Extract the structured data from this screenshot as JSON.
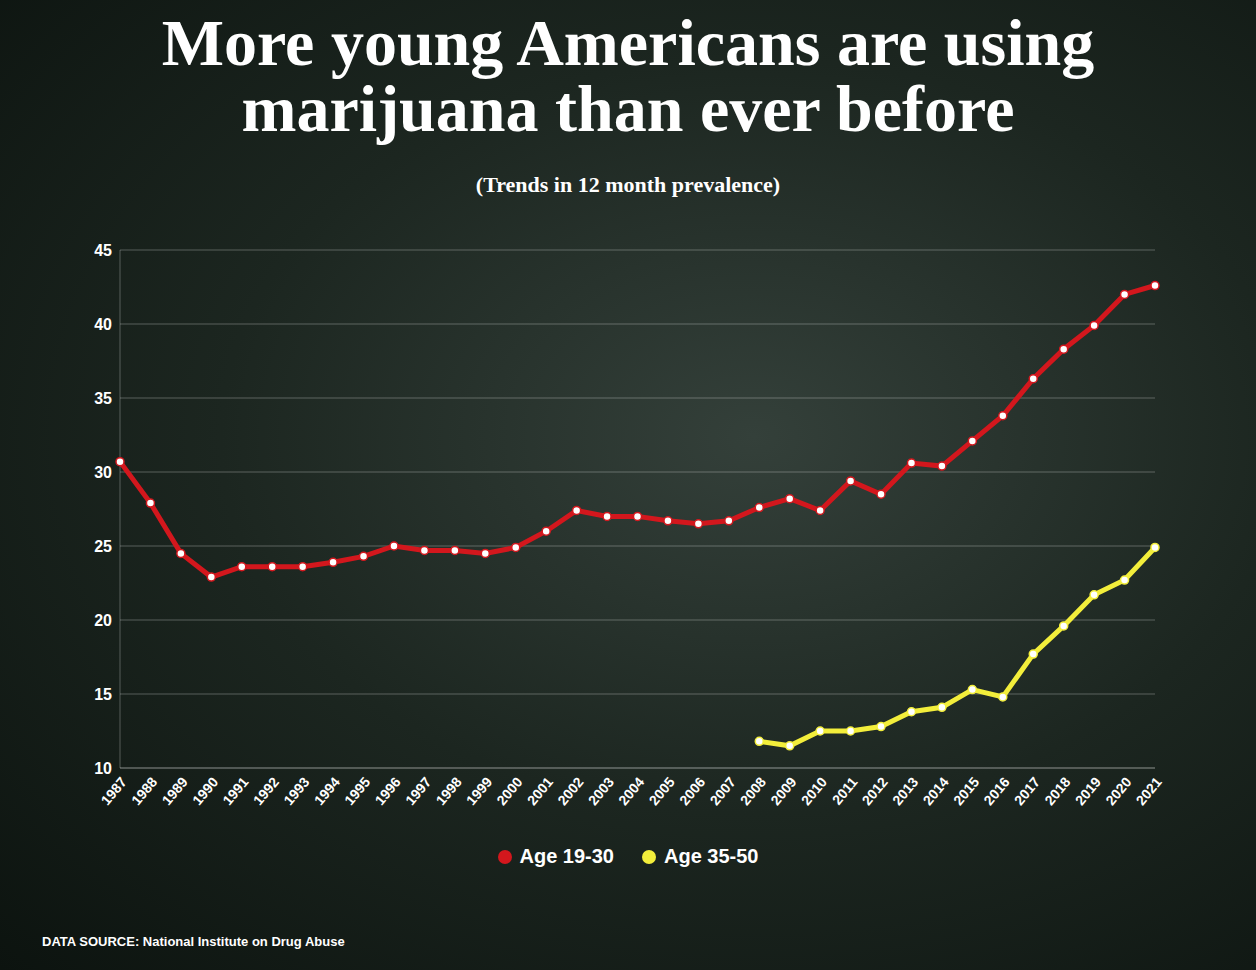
{
  "chart_data": {
    "type": "line",
    "title": "More young Americans are using marijuana than ever before",
    "subtitle": "(Trends in 12 month prevalence)",
    "source": "DATA SOURCE: National Institute on Drug Abuse",
    "categories": [
      "1987",
      "1988",
      "1989",
      "1990",
      "1991",
      "1992",
      "1993",
      "1994",
      "1995",
      "1996",
      "1997",
      "1998",
      "1999",
      "2000",
      "2001",
      "2002",
      "2003",
      "2004",
      "2005",
      "2006",
      "2007",
      "2008",
      "2009",
      "2010",
      "2011",
      "2012",
      "2013",
      "2014",
      "2015",
      "2016",
      "2017",
      "2018",
      "2019",
      "2020",
      "2021"
    ],
    "series": [
      {
        "name": "Age 19-30",
        "color": "#d3171d",
        "values": [
          30.7,
          27.9,
          24.5,
          22.9,
          23.6,
          23.6,
          23.6,
          23.9,
          24.3,
          25.0,
          24.7,
          24.7,
          24.5,
          24.9,
          26.0,
          27.4,
          27.0,
          27.0,
          26.7,
          26.5,
          26.7,
          27.6,
          28.2,
          27.4,
          29.4,
          28.5,
          30.6,
          30.4,
          32.1,
          33.8,
          36.3,
          38.3,
          39.9,
          42.0,
          42.6
        ]
      },
      {
        "name": "Age 35-50",
        "color": "#f3ee3b",
        "values": [
          null,
          null,
          null,
          null,
          null,
          null,
          null,
          null,
          null,
          null,
          null,
          null,
          null,
          null,
          null,
          null,
          null,
          null,
          null,
          null,
          null,
          11.8,
          11.5,
          12.5,
          12.5,
          12.8,
          13.8,
          14.1,
          15.3,
          14.8,
          17.7,
          19.6,
          21.7,
          22.7,
          24.9
        ]
      }
    ],
    "ylim": [
      10,
      45
    ],
    "yticks": [
      10,
      15,
      20,
      25,
      30,
      35,
      40,
      45
    ],
    "grid": true,
    "marker": "circle",
    "legend": "bottom"
  }
}
